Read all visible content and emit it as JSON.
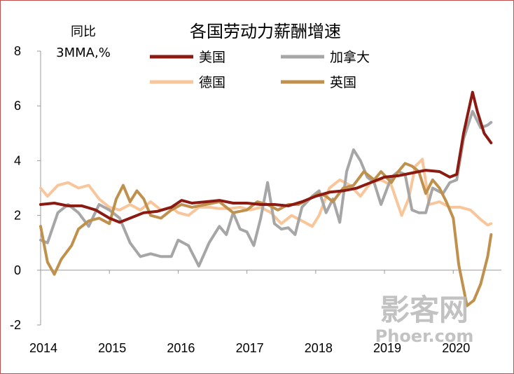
{
  "chart_data": {
    "type": "line",
    "title": "各国劳动力薪酬增速",
    "ylabel_line1": "同比",
    "ylabel_line2": "3MMA,%",
    "ylim": [
      -2,
      8
    ],
    "y_ticks": [
      "8",
      "6",
      "4",
      "2",
      "0",
      "-2"
    ],
    "x_ticks": [
      "2014",
      "2015",
      "2016",
      "2017",
      "2018",
      "2019",
      "2020"
    ],
    "xlim": [
      2014,
      2020.7
    ],
    "grid": false,
    "legend_placement": "top-right",
    "series": [
      {
        "name": "美国",
        "color": "#8b1a12",
        "points": [
          [
            2014.0,
            2.4
          ],
          [
            2014.2,
            2.45
          ],
          [
            2014.4,
            2.35
          ],
          [
            2014.6,
            2.35
          ],
          [
            2014.8,
            2.2
          ],
          [
            2015.0,
            1.9
          ],
          [
            2015.15,
            1.75
          ],
          [
            2015.3,
            1.9
          ],
          [
            2015.5,
            2.1
          ],
          [
            2015.7,
            2.15
          ],
          [
            2015.9,
            2.3
          ],
          [
            2016.05,
            2.55
          ],
          [
            2016.2,
            2.45
          ],
          [
            2016.4,
            2.5
          ],
          [
            2016.6,
            2.55
          ],
          [
            2016.8,
            2.45
          ],
          [
            2017.0,
            2.45
          ],
          [
            2017.2,
            2.4
          ],
          [
            2017.4,
            2.4
          ],
          [
            2017.6,
            2.35
          ],
          [
            2017.8,
            2.5
          ],
          [
            2018.0,
            2.7
          ],
          [
            2018.2,
            2.85
          ],
          [
            2018.4,
            2.9
          ],
          [
            2018.6,
            3.0
          ],
          [
            2018.8,
            3.2
          ],
          [
            2019.0,
            3.4
          ],
          [
            2019.2,
            3.45
          ],
          [
            2019.4,
            3.55
          ],
          [
            2019.6,
            3.65
          ],
          [
            2019.8,
            3.6
          ],
          [
            2019.95,
            3.4
          ],
          [
            2020.05,
            3.5
          ],
          [
            2020.15,
            5.0
          ],
          [
            2020.28,
            6.5
          ],
          [
            2020.35,
            5.8
          ],
          [
            2020.45,
            5.0
          ],
          [
            2020.55,
            4.65
          ]
        ]
      },
      {
        "name": "加拿大",
        "color": "#a6a6a6",
        "points": [
          [
            2014.0,
            1.1
          ],
          [
            2014.1,
            1.0
          ],
          [
            2014.25,
            2.1
          ],
          [
            2014.4,
            2.4
          ],
          [
            2014.55,
            2.1
          ],
          [
            2014.7,
            1.6
          ],
          [
            2014.85,
            2.4
          ],
          [
            2015.0,
            2.2
          ],
          [
            2015.15,
            1.9
          ],
          [
            2015.3,
            1.0
          ],
          [
            2015.45,
            0.5
          ],
          [
            2015.6,
            0.6
          ],
          [
            2015.75,
            0.5
          ],
          [
            2015.9,
            0.5
          ],
          [
            2016.0,
            1.1
          ],
          [
            2016.15,
            0.9
          ],
          [
            2016.3,
            0.15
          ],
          [
            2016.45,
            1.0
          ],
          [
            2016.6,
            1.6
          ],
          [
            2016.7,
            1.3
          ],
          [
            2016.8,
            2.1
          ],
          [
            2016.9,
            1.5
          ],
          [
            2017.0,
            1.4
          ],
          [
            2017.1,
            0.9
          ],
          [
            2017.2,
            1.9
          ],
          [
            2017.3,
            3.2
          ],
          [
            2017.4,
            1.7
          ],
          [
            2017.5,
            1.5
          ],
          [
            2017.6,
            1.55
          ],
          [
            2017.7,
            1.3
          ],
          [
            2017.8,
            2.3
          ],
          [
            2017.95,
            2.7
          ],
          [
            2018.05,
            2.9
          ],
          [
            2018.15,
            2.1
          ],
          [
            2018.25,
            2.6
          ],
          [
            2018.35,
            1.75
          ],
          [
            2018.45,
            3.6
          ],
          [
            2018.55,
            4.4
          ],
          [
            2018.65,
            4.0
          ],
          [
            2018.75,
            3.4
          ],
          [
            2018.85,
            3.2
          ],
          [
            2018.95,
            2.4
          ],
          [
            2019.1,
            3.4
          ],
          [
            2019.2,
            3.6
          ],
          [
            2019.3,
            3.5
          ],
          [
            2019.4,
            2.2
          ],
          [
            2019.5,
            2.1
          ],
          [
            2019.6,
            2.1
          ],
          [
            2019.7,
            3.0
          ],
          [
            2019.85,
            2.8
          ],
          [
            2019.95,
            3.2
          ],
          [
            2020.05,
            3.3
          ],
          [
            2020.15,
            4.8
          ],
          [
            2020.28,
            5.8
          ],
          [
            2020.4,
            5.2
          ],
          [
            2020.5,
            5.3
          ],
          [
            2020.55,
            5.4
          ]
        ]
      },
      {
        "name": "德国",
        "color": "#f8c69a",
        "points": [
          [
            2014.0,
            3.0
          ],
          [
            2014.1,
            2.7
          ],
          [
            2014.25,
            3.1
          ],
          [
            2014.4,
            3.2
          ],
          [
            2014.55,
            3.0
          ],
          [
            2014.7,
            3.1
          ],
          [
            2014.85,
            2.6
          ],
          [
            2015.0,
            2.3
          ],
          [
            2015.15,
            2.2
          ],
          [
            2015.3,
            2.4
          ],
          [
            2015.45,
            2.2
          ],
          [
            2015.6,
            2.5
          ],
          [
            2015.75,
            2.2
          ],
          [
            2015.9,
            2.3
          ],
          [
            2016.0,
            2.1
          ],
          [
            2016.15,
            2.0
          ],
          [
            2016.3,
            2.3
          ],
          [
            2016.45,
            2.3
          ],
          [
            2016.6,
            2.25
          ],
          [
            2016.75,
            2.25
          ],
          [
            2016.9,
            2.3
          ],
          [
            2017.05,
            2.2
          ],
          [
            2017.2,
            2.3
          ],
          [
            2017.35,
            2.1
          ],
          [
            2017.5,
            1.7
          ],
          [
            2017.65,
            2.0
          ],
          [
            2017.8,
            1.8
          ],
          [
            2017.95,
            1.6
          ],
          [
            2018.05,
            2.0
          ],
          [
            2018.2,
            3.0
          ],
          [
            2018.35,
            3.3
          ],
          [
            2018.5,
            3.1
          ],
          [
            2018.65,
            2.7
          ],
          [
            2018.8,
            3.2
          ],
          [
            2018.95,
            3.3
          ],
          [
            2019.1,
            3.1
          ],
          [
            2019.25,
            2.0
          ],
          [
            2019.35,
            2.6
          ],
          [
            2019.45,
            3.8
          ],
          [
            2019.55,
            4.05
          ],
          [
            2019.65,
            2.4
          ],
          [
            2019.8,
            2.5
          ],
          [
            2019.95,
            2.3
          ],
          [
            2020.1,
            2.3
          ],
          [
            2020.25,
            2.2
          ],
          [
            2020.4,
            1.85
          ],
          [
            2020.5,
            1.65
          ],
          [
            2020.55,
            1.7
          ]
        ]
      },
      {
        "name": "英国",
        "color": "#c0904d",
        "points": [
          [
            2014.0,
            1.6
          ],
          [
            2014.1,
            0.3
          ],
          [
            2014.2,
            -0.15
          ],
          [
            2014.3,
            0.4
          ],
          [
            2014.45,
            0.9
          ],
          [
            2014.55,
            1.5
          ],
          [
            2014.7,
            1.8
          ],
          [
            2014.85,
            1.9
          ],
          [
            2015.0,
            1.7
          ],
          [
            2015.1,
            2.6
          ],
          [
            2015.2,
            3.1
          ],
          [
            2015.3,
            2.5
          ],
          [
            2015.4,
            2.9
          ],
          [
            2015.5,
            2.6
          ],
          [
            2015.6,
            2.0
          ],
          [
            2015.75,
            1.9
          ],
          [
            2015.9,
            2.2
          ],
          [
            2016.05,
            2.4
          ],
          [
            2016.2,
            2.3
          ],
          [
            2016.4,
            2.4
          ],
          [
            2016.6,
            2.5
          ],
          [
            2016.8,
            2.1
          ],
          [
            2017.0,
            2.2
          ],
          [
            2017.15,
            2.5
          ],
          [
            2017.3,
            2.4
          ],
          [
            2017.45,
            2.2
          ],
          [
            2017.6,
            2.4
          ],
          [
            2017.75,
            2.4
          ],
          [
            2017.9,
            2.6
          ],
          [
            2018.05,
            2.8
          ],
          [
            2018.15,
            2.7
          ],
          [
            2018.25,
            2.5
          ],
          [
            2018.4,
            3.0
          ],
          [
            2018.55,
            3.1
          ],
          [
            2018.7,
            3.6
          ],
          [
            2018.85,
            3.3
          ],
          [
            2018.95,
            3.6
          ],
          [
            2019.1,
            3.2
          ],
          [
            2019.2,
            3.6
          ],
          [
            2019.3,
            3.9
          ],
          [
            2019.4,
            3.8
          ],
          [
            2019.5,
            3.6
          ],
          [
            2019.6,
            2.8
          ],
          [
            2019.7,
            3.3
          ],
          [
            2019.8,
            3.0
          ],
          [
            2019.9,
            2.5
          ],
          [
            2020.0,
            1.9
          ],
          [
            2020.08,
            0.2
          ],
          [
            2020.2,
            -1.3
          ],
          [
            2020.3,
            -1.1
          ],
          [
            2020.4,
            -0.5
          ],
          [
            2020.5,
            0.5
          ],
          [
            2020.55,
            1.3
          ]
        ]
      }
    ]
  },
  "watermark": {
    "line1": "影客网",
    "line2": "Phoer.com"
  }
}
